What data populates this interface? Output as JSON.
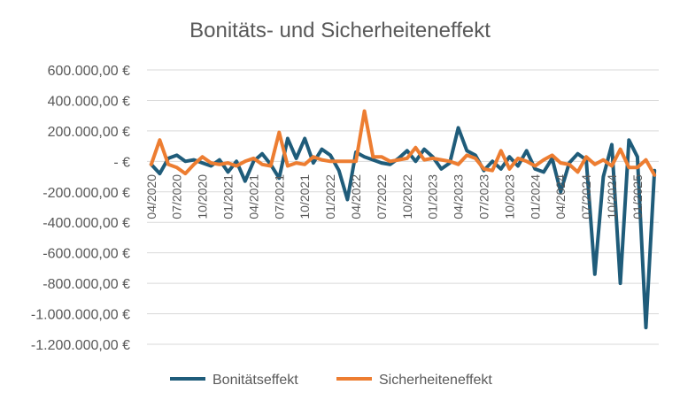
{
  "chart_data": {
    "type": "line",
    "title": "Bonitäts- und Sicherheiteneffekt",
    "xlabel": "",
    "ylabel": "",
    "ylim": [
      -1200000,
      600000
    ],
    "yticks": [
      600000,
      400000,
      200000,
      0,
      -200000,
      -400000,
      -600000,
      -800000,
      -1000000,
      -1200000
    ],
    "ytick_labels": [
      "600.000,00 €",
      "400.000,00 €",
      "200.000,00 €",
      "-   €",
      "-200.000,00 €",
      "-400.000,00 €",
      "-600.000,00 €",
      "-800.000,00 €",
      "-1.000.000,00 €",
      "-1.200.000,00 €"
    ],
    "categories": [
      "04/2020",
      "05/2020",
      "06/2020",
      "07/2020",
      "08/2020",
      "09/2020",
      "10/2020",
      "11/2020",
      "12/2020",
      "01/2021",
      "02/2021",
      "03/2021",
      "04/2021",
      "05/2021",
      "06/2021",
      "07/2021",
      "08/2021",
      "09/2021",
      "10/2021",
      "11/2021",
      "12/2021",
      "01/2022",
      "02/2022",
      "03/2022",
      "04/2022",
      "05/2022",
      "06/2022",
      "07/2022",
      "08/2022",
      "09/2022",
      "10/2022",
      "11/2022",
      "12/2022",
      "01/2023",
      "02/2023",
      "03/2023",
      "04/2023",
      "05/2023",
      "06/2023",
      "07/2023",
      "08/2023",
      "09/2023",
      "10/2023",
      "11/2023",
      "12/2023",
      "01/2024",
      "02/2024",
      "03/2024",
      "04/2024",
      "05/2024",
      "06/2024",
      "07/2024",
      "08/2024",
      "09/2024",
      "10/2024",
      "11/2024",
      "12/2024",
      "01/2025",
      "02/2025",
      "03/2025"
    ],
    "xtick_labels": [
      "04/2020",
      "07/2020",
      "10/2020",
      "01/2021",
      "04/2021",
      "07/2021",
      "10/2021",
      "01/2022",
      "04/2022",
      "07/2022",
      "10/2022",
      "01/2023",
      "04/2023",
      "07/2023",
      "10/2023",
      "01/2024",
      "04/2024",
      "07/2024",
      "10/2024",
      "01/2025"
    ],
    "xtick_step": 3,
    "grid": true,
    "legend": "bottom",
    "series": [
      {
        "name": "Bonitätseffekt",
        "color": "#1f5c7a",
        "values": [
          -20000,
          -80000,
          20000,
          40000,
          0,
          10000,
          -10000,
          -30000,
          10000,
          -70000,
          0,
          -130000,
          0,
          50000,
          -20000,
          -110000,
          150000,
          20000,
          150000,
          -10000,
          80000,
          40000,
          -60000,
          -250000,
          60000,
          30000,
          10000,
          -10000,
          -20000,
          20000,
          70000,
          0,
          80000,
          30000,
          -50000,
          -10000,
          220000,
          70000,
          40000,
          -60000,
          0,
          -50000,
          30000,
          -30000,
          70000,
          -50000,
          -70000,
          20000,
          -200000,
          -10000,
          50000,
          10000,
          -740000,
          -100000,
          110000,
          -800000,
          140000,
          30000,
          -1090000,
          -60000
        ]
      },
      {
        "name": "Sicherheiteneffekt",
        "color": "#ed7d31",
        "values": [
          -20000,
          140000,
          -20000,
          -40000,
          -80000,
          -20000,
          30000,
          -10000,
          -20000,
          -10000,
          -30000,
          0,
          20000,
          -20000,
          -30000,
          190000,
          -30000,
          -10000,
          -20000,
          30000,
          10000,
          0,
          0,
          0,
          0,
          330000,
          30000,
          30000,
          0,
          10000,
          20000,
          90000,
          10000,
          20000,
          10000,
          0,
          -20000,
          40000,
          20000,
          -50000,
          -60000,
          70000,
          -50000,
          20000,
          0,
          -30000,
          10000,
          40000,
          -10000,
          -20000,
          -70000,
          30000,
          -20000,
          10000,
          -30000,
          80000,
          -40000,
          -40000,
          10000,
          -90000
        ]
      }
    ]
  }
}
